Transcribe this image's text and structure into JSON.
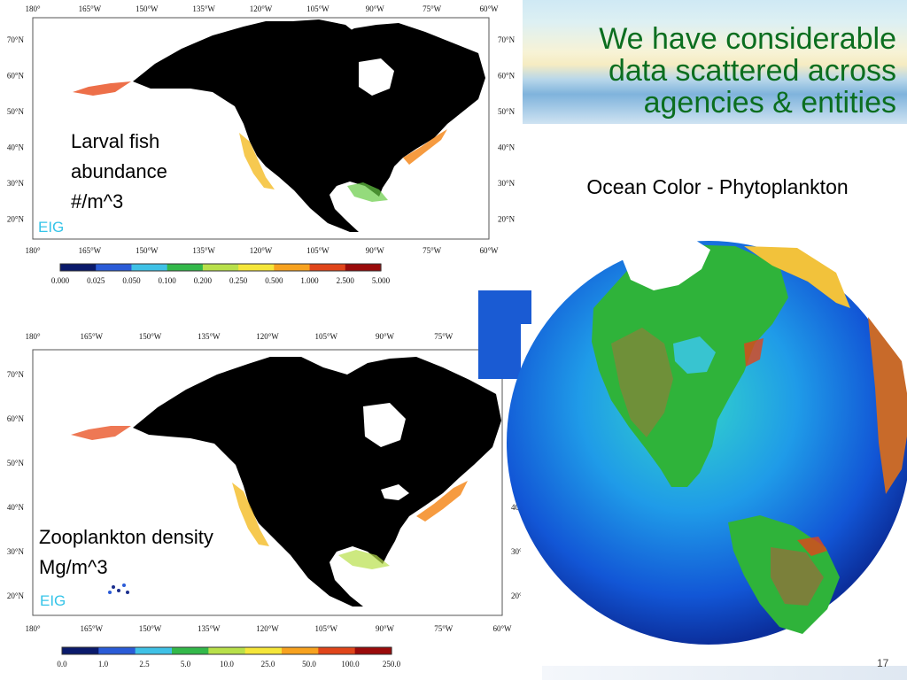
{
  "slide": {
    "title_lines": [
      "We have considerable",
      "data scattered across",
      "agencies & entities"
    ],
    "subtitle": "Ocean Color - Phytoplankton",
    "slide_number": "17"
  },
  "map_longitudes": [
    "180°",
    "165°W",
    "150°W",
    "135°W",
    "120°W",
    "105°W",
    "90°W",
    "75°W",
    "60°W"
  ],
  "map_latitudes": [
    "70°N",
    "60°N",
    "50°N",
    "40°N",
    "30°N",
    "20°N"
  ],
  "panel_top": {
    "label_lines": [
      "Larval fish",
      "abundance",
      "#/m^3"
    ],
    "logo": "EIG",
    "colorbar_ticks": [
      "0.000",
      "0.025",
      "0.050",
      "0.100",
      "0.200",
      "0.250",
      "0.500",
      "1.000",
      "2.500",
      "5.000"
    ]
  },
  "panel_bottom": {
    "label_lines": [
      "Zooplankton density",
      "Mg/m^3"
    ],
    "logo": "EIG",
    "colorbar_ticks": [
      "0.0",
      "1.0",
      "2.5",
      "5.0",
      "10.0",
      "25.0",
      "50.0",
      "100.0",
      "250.0"
    ]
  },
  "colors": {
    "title": "#0b6e1f",
    "land": "#000000",
    "logo": "#35c4e8",
    "colorbar": [
      "#0a1a6b",
      "#2a5bd7",
      "#3fc1e6",
      "#33b84a",
      "#b8e04a",
      "#f5e63a",
      "#f7a21f",
      "#e0451a",
      "#9a0a0a"
    ]
  }
}
